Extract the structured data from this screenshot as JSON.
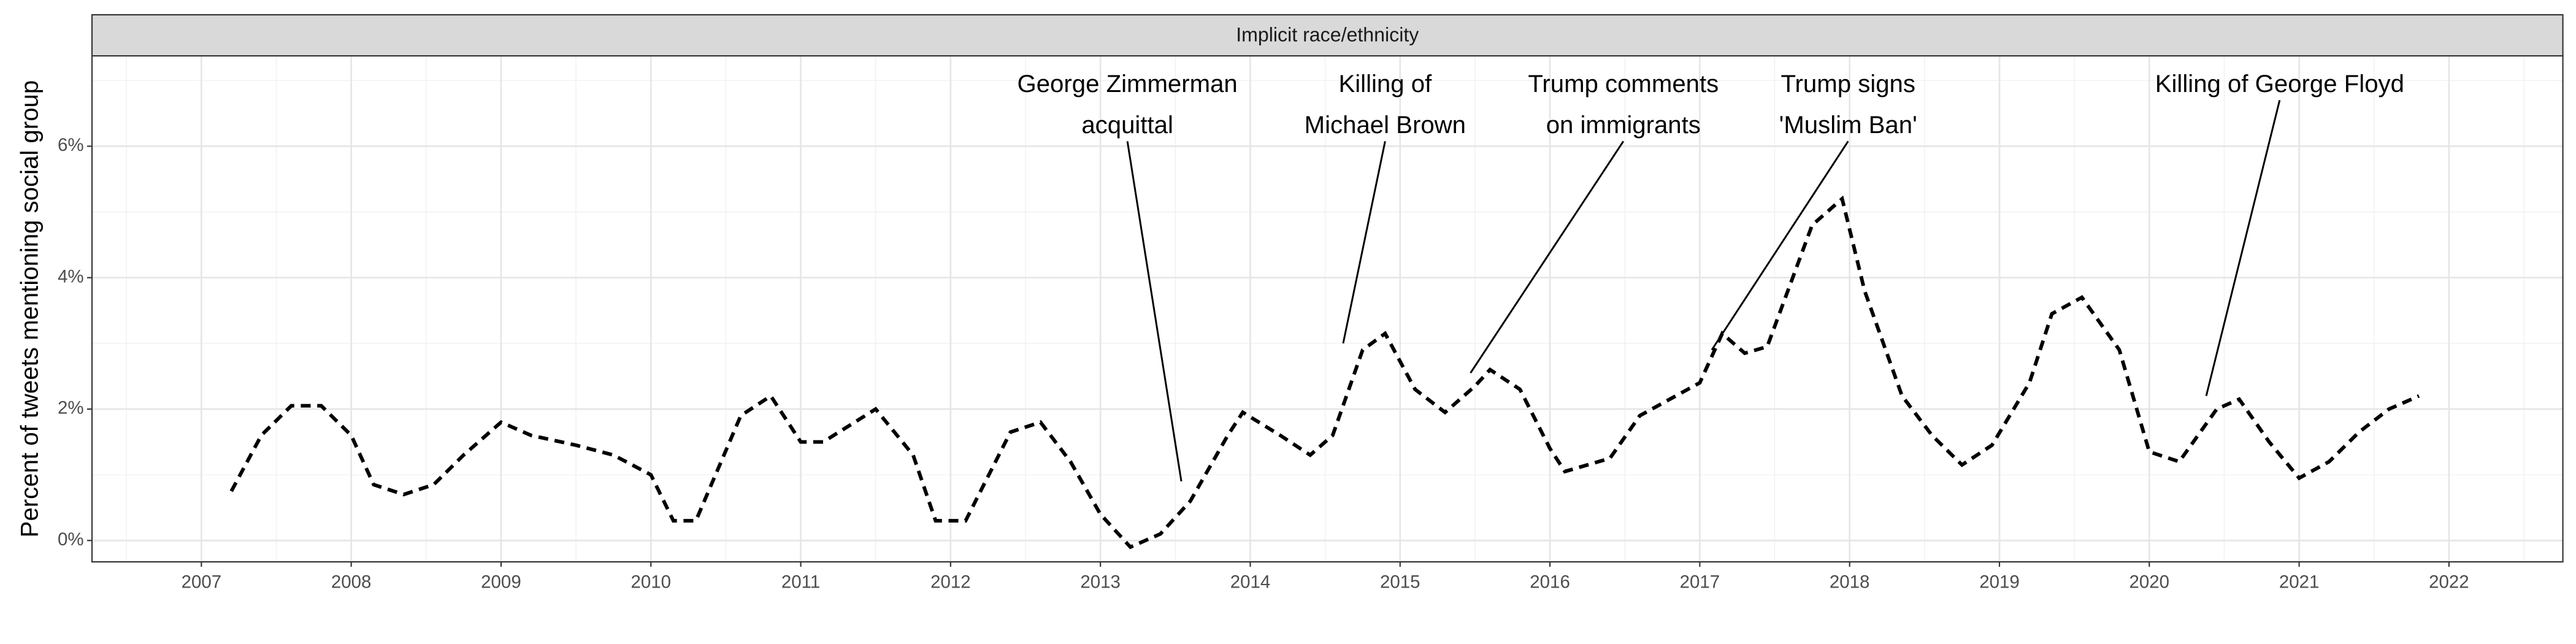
{
  "chart_data": {
    "type": "line",
    "facet_title": "Implicit race/ethnicity",
    "y_label": "Percent of tweets mentioning social group",
    "x": [
      2007.2,
      2007.4,
      2007.6,
      2007.8,
      2008.0,
      2008.15,
      2008.35,
      2008.55,
      2008.75,
      2009.0,
      2009.2,
      2009.5,
      2009.75,
      2010.0,
      2010.15,
      2010.3,
      2010.6,
      2010.8,
      2011.0,
      2011.15,
      2011.5,
      2011.75,
      2011.9,
      2012.1,
      2012.4,
      2012.6,
      2012.8,
      2013.0,
      2013.2,
      2013.4,
      2013.6,
      2013.85,
      2013.95,
      2014.2,
      2014.4,
      2014.55,
      2014.75,
      2014.9,
      2015.1,
      2015.3,
      2015.5,
      2015.6,
      2015.8,
      2016.0,
      2016.1,
      2016.4,
      2016.6,
      2016.8,
      2017.0,
      2017.15,
      2017.3,
      2017.45,
      2017.75,
      2017.95,
      2018.1,
      2018.35,
      2018.55,
      2018.75,
      2018.95,
      2019.2,
      2019.35,
      2019.55,
      2019.8,
      2020.0,
      2020.2,
      2020.45,
      2020.6,
      2020.8,
      2021.0,
      2021.2,
      2021.4,
      2021.6,
      2021.8
    ],
    "series": [
      {
        "name": "Implicit race/ethnicity",
        "color": "#000000",
        "dashed": true,
        "values": [
          0.75,
          1.6,
          2.05,
          2.05,
          1.6,
          0.85,
          0.7,
          0.85,
          1.3,
          1.8,
          1.6,
          1.45,
          1.3,
          1.0,
          0.3,
          0.3,
          1.9,
          2.2,
          1.5,
          1.5,
          2.0,
          1.3,
          0.3,
          0.3,
          1.65,
          1.8,
          1.2,
          0.4,
          -0.1,
          0.1,
          0.6,
          1.6,
          1.95,
          1.6,
          1.3,
          1.6,
          2.9,
          3.15,
          2.3,
          1.95,
          2.35,
          2.6,
          2.3,
          1.4,
          1.05,
          1.25,
          1.9,
          2.15,
          2.4,
          3.15,
          2.85,
          2.95,
          4.8,
          5.2,
          3.8,
          2.2,
          1.6,
          1.15,
          1.45,
          2.4,
          3.45,
          3.7,
          2.9,
          1.35,
          1.2,
          2.0,
          2.15,
          1.5,
          0.95,
          1.2,
          1.65,
          2.0,
          2.2
        ]
      }
    ],
    "xlim": [
      2006.27,
      2022.76
    ],
    "xticks": [
      2007,
      2008,
      2009,
      2010,
      2011,
      2012,
      2013,
      2014,
      2015,
      2016,
      2017,
      2018,
      2019,
      2020,
      2021,
      2022
    ],
    "ylim": [
      -0.325,
      7.375
    ],
    "yticks": [
      {
        "value": 0,
        "label": "0%"
      },
      {
        "value": 2,
        "label": "2%"
      },
      {
        "value": 4,
        "label": "4%"
      },
      {
        "value": 6,
        "label": "6%"
      }
    ],
    "grid": true,
    "annotations": [
      {
        "text": [
          "George Zimmerman",
          "acquittal"
        ],
        "x": 2013.54,
        "y": 0.9
      },
      {
        "text": [
          "Killing of",
          "Michael Brown"
        ],
        "x": 2014.62,
        "y": 3.0
      },
      {
        "text": [
          "Trump comments",
          "on immigrants"
        ],
        "x": 2015.47,
        "y": 2.55
      },
      {
        "text": [
          "Trump signs",
          "'Muslim Ban'"
        ],
        "x": 2017.08,
        "y": 2.9
      },
      {
        "text": [
          "Killing of George Floyd"
        ],
        "x": 2020.38,
        "y": 2.2
      }
    ]
  }
}
